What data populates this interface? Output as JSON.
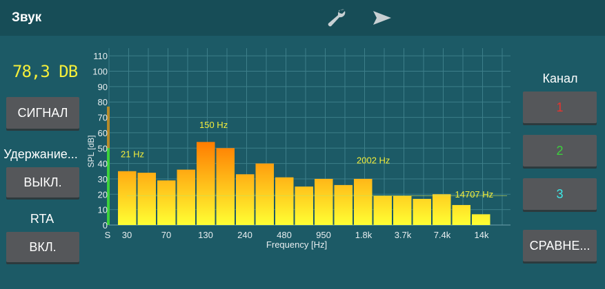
{
  "header": {
    "title": "Звук",
    "icons": [
      "wrench-icon",
      "send-icon"
    ]
  },
  "left_panel": {
    "spl_readout": "78,3 DB",
    "signal_button": "СИГНАЛ",
    "hold_label": "Удержание...",
    "hold_button": "ВЫКЛ.",
    "rta_label": "RTA",
    "rta_button": "ВКЛ."
  },
  "right_panel": {
    "channel_label": "Канал",
    "channels": [
      {
        "label": "1",
        "color": "#e8332e"
      },
      {
        "label": "2",
        "color": "#3cd13c"
      },
      {
        "label": "3",
        "color": "#3ce8e8"
      }
    ],
    "compare_button": "СРАВНЕ..."
  },
  "chart_data": {
    "type": "bar",
    "ylabel": "SPL [dB]",
    "xlabel": "Frequency [Hz]",
    "ylim": [
      0,
      115
    ],
    "yticks": [
      0,
      10,
      20,
      30,
      40,
      50,
      60,
      70,
      80,
      90,
      100,
      110
    ],
    "xtick_labels": [
      "S",
      "30",
      "70",
      "130",
      "240",
      "480",
      "950",
      "1.8k",
      "3.7k",
      "7.4k",
      "14k"
    ],
    "level_meter_value": 77,
    "values": [
      35,
      34,
      29,
      36,
      54,
      50,
      33,
      40,
      31,
      25,
      30,
      26,
      30,
      19,
      19,
      17,
      20,
      13,
      7
    ],
    "annotations": [
      {
        "text": "21 Hz",
        "bar": 0,
        "y": 44
      },
      {
        "text": "150 Hz",
        "bar": 4,
        "y": 63
      },
      {
        "text": "2002 Hz",
        "bar": 12,
        "y": 40
      },
      {
        "text": "14707 Hz",
        "bar": 17,
        "y": 18
      }
    ],
    "peak_line": 19,
    "grid": true,
    "colors": {
      "bar_top": "#ff7a00",
      "bar_bottom": "#ffff33",
      "grid": "#3d7f8a",
      "annotation": "#f4ee3a",
      "meter": "#3cd13c"
    }
  }
}
